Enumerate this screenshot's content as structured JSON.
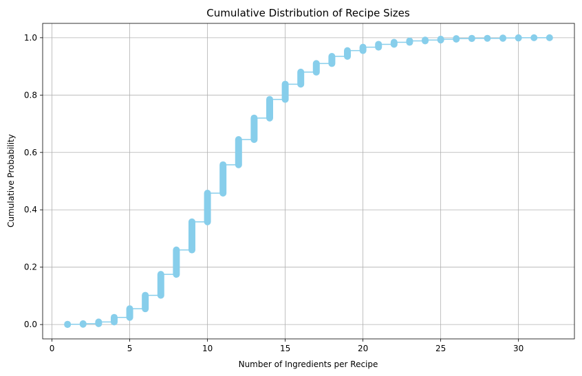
{
  "chart_data": {
    "type": "line",
    "title": "Cumulative Distribution of Recipe Sizes",
    "xlabel": "Number of Ingredients per Recipe",
    "ylabel": "Cumulative Probability",
    "xlim": [
      -0.6,
      33.6
    ],
    "ylim": [
      -0.05,
      1.05
    ],
    "xticks": [
      0,
      5,
      10,
      15,
      20,
      25,
      30
    ],
    "yticks": [
      0.0,
      0.2,
      0.4,
      0.6,
      0.8,
      1.0
    ],
    "xtick_labels": [
      "0",
      "5",
      "10",
      "15",
      "20",
      "25",
      "30"
    ],
    "ytick_labels": [
      "0.0",
      "0.2",
      "0.4",
      "0.6",
      "0.8",
      "1.0"
    ],
    "grid": true,
    "color": "#87CEEB",
    "steps": [
      {
        "x": 1,
        "y_min": 0.0,
        "y_max": 0.001
      },
      {
        "x": 2,
        "y_min": 0.001,
        "y_max": 0.003
      },
      {
        "x": 3,
        "y_min": 0.003,
        "y_max": 0.009
      },
      {
        "x": 4,
        "y_min": 0.009,
        "y_max": 0.025
      },
      {
        "x": 5,
        "y_min": 0.025,
        "y_max": 0.055
      },
      {
        "x": 6,
        "y_min": 0.055,
        "y_max": 0.102
      },
      {
        "x": 7,
        "y_min": 0.102,
        "y_max": 0.175
      },
      {
        "x": 8,
        "y_min": 0.175,
        "y_max": 0.26
      },
      {
        "x": 9,
        "y_min": 0.26,
        "y_max": 0.358
      },
      {
        "x": 10,
        "y_min": 0.358,
        "y_max": 0.458
      },
      {
        "x": 11,
        "y_min": 0.458,
        "y_max": 0.557
      },
      {
        "x": 12,
        "y_min": 0.557,
        "y_max": 0.645
      },
      {
        "x": 13,
        "y_min": 0.645,
        "y_max": 0.72
      },
      {
        "x": 14,
        "y_min": 0.72,
        "y_max": 0.785
      },
      {
        "x": 15,
        "y_min": 0.785,
        "y_max": 0.838
      },
      {
        "x": 16,
        "y_min": 0.838,
        "y_max": 0.88
      },
      {
        "x": 17,
        "y_min": 0.88,
        "y_max": 0.91
      },
      {
        "x": 18,
        "y_min": 0.91,
        "y_max": 0.935
      },
      {
        "x": 19,
        "y_min": 0.935,
        "y_max": 0.955
      },
      {
        "x": 20,
        "y_min": 0.955,
        "y_max": 0.967
      },
      {
        "x": 21,
        "y_min": 0.967,
        "y_max": 0.977
      },
      {
        "x": 22,
        "y_min": 0.977,
        "y_max": 0.984
      },
      {
        "x": 23,
        "y_min": 0.984,
        "y_max": 0.989
      },
      {
        "x": 24,
        "y_min": 0.989,
        "y_max": 0.992
      },
      {
        "x": 25,
        "y_min": 0.992,
        "y_max": 0.995
      },
      {
        "x": 26,
        "y_min": 0.995,
        "y_max": 0.997
      },
      {
        "x": 27,
        "y_min": 0.997,
        "y_max": 0.998
      },
      {
        "x": 28,
        "y_min": 0.998,
        "y_max": 0.998
      },
      {
        "x": 29,
        "y_min": 0.998,
        "y_max": 0.999
      },
      {
        "x": 30,
        "y_min": 0.999,
        "y_max": 1.0
      },
      {
        "x": 31,
        "y_min": 1.0,
        "y_max": 1.0
      },
      {
        "x": 32,
        "y_min": 1.0,
        "y_max": 1.0
      }
    ]
  }
}
